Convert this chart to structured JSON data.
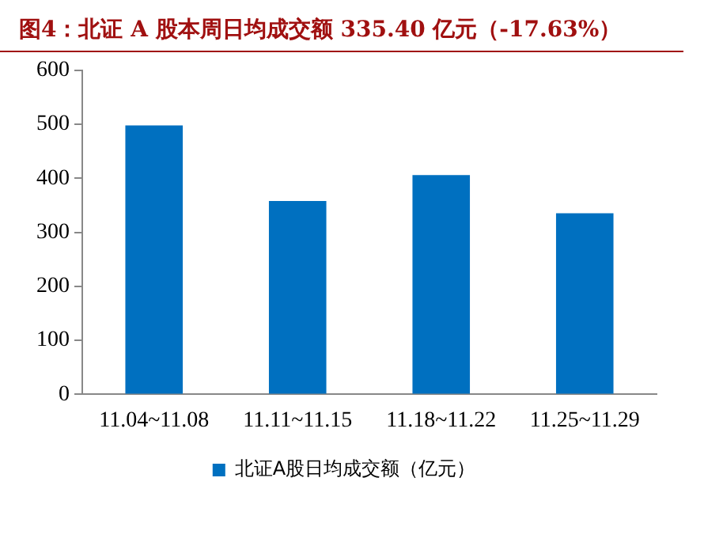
{
  "chart_data": {
    "type": "bar",
    "title": "图4：北证 A 股本周日均成交额 335.40 亿元（-17.63%）",
    "categories": [
      "11.04~11.08",
      "11.11~11.15",
      "11.18~11.22",
      "11.25~11.29"
    ],
    "series": [
      {
        "name": "北证A股日均成交额（亿元）",
        "color": "#0070c0",
        "values": [
          498,
          358,
          406,
          335.4
        ]
      }
    ],
    "ylim": [
      0,
      600
    ],
    "yticks": [
      0,
      100,
      200,
      300,
      400,
      500,
      600
    ],
    "grid": false,
    "legend": "bottom"
  }
}
